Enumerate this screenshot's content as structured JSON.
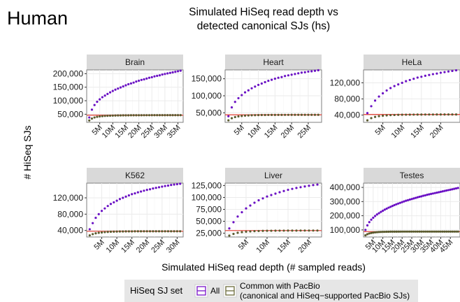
{
  "figure": {
    "corner_label": "Human",
    "title_line1": "Simulated HiSeq read depth vs",
    "title_line2": "detected canonical SJs (hs)",
    "xlabel": "Simulated HiSeq read depth (# sampled reads)",
    "ylabel": "# HiSeq SJs"
  },
  "legend": {
    "title": "HiSeq SJ set",
    "items": [
      {
        "label": "All",
        "color": "#7a14c8"
      },
      {
        "label_line1": "Common with PacBio",
        "label_line2": "(canonical and HiSeq−supported PacBio SJs)",
        "color": "#6b6b3a"
      }
    ]
  },
  "colors": {
    "all_series": "#6a10c4",
    "common_series": "#5a5a2e",
    "pacbio_line": "#e03a2e"
  },
  "chart_data": [
    {
      "type": "scatter",
      "panel": "Brain",
      "xlim": [
        0,
        37
      ],
      "ylim": [
        20000,
        214000
      ],
      "xticks": [
        5,
        10,
        15,
        20,
        25,
        30,
        35
      ],
      "xtick_labels": [
        "5M",
        "10M",
        "15M",
        "20M",
        "25M",
        "30M",
        "35M"
      ],
      "yticks": [
        50000,
        100000,
        150000,
        200000
      ],
      "ytick_labels": [
        "50,000",
        "100,000",
        "150,000",
        "200,000"
      ],
      "pacbio_reference": 46500,
      "series": [
        {
          "name": "All",
          "x": [
            1,
            2,
            3,
            4,
            5,
            6,
            7,
            8,
            9,
            10,
            11,
            12,
            13,
            14,
            15,
            16,
            17,
            18,
            19,
            20,
            21,
            22,
            23,
            24,
            25,
            26,
            27,
            28,
            29,
            30,
            31,
            32,
            33,
            34,
            35,
            36
          ],
          "y": [
            38000,
            67000,
            84000,
            96000,
            105000,
            113000,
            119000,
            125000,
            131000,
            136000,
            141000,
            145000,
            149000,
            153000,
            157000,
            161000,
            164000,
            167000,
            171000,
            174000,
            177000,
            179000,
            182000,
            185000,
            187000,
            190000,
            192000,
            194000,
            197000,
            199000,
            201000,
            203000,
            205000,
            207000,
            209000,
            211000
          ]
        },
        {
          "name": "Common with PacBio",
          "x": [
            1,
            2,
            3,
            4,
            5,
            6,
            7,
            8,
            9,
            10,
            11,
            12,
            13,
            14,
            15,
            16,
            17,
            18,
            19,
            20,
            21,
            22,
            23,
            24,
            25,
            26,
            27,
            28,
            29,
            30,
            31,
            32,
            33,
            34,
            35,
            36
          ],
          "y": [
            27000,
            34000,
            38000,
            40500,
            42000,
            43000,
            43800,
            44300,
            44700,
            45000,
            45300,
            45500,
            45700,
            45800,
            45900,
            46000,
            46100,
            46200,
            46200,
            46300,
            46300,
            46400,
            46400,
            46400,
            46500,
            46500,
            46500,
            46500,
            46500,
            46500,
            46500,
            46500,
            46500,
            46500,
            46500,
            46500
          ]
        }
      ]
    },
    {
      "type": "scatter",
      "panel": "Heart",
      "xlim": [
        0,
        29
      ],
      "ylim": [
        22000,
        176000
      ],
      "xticks": [
        5,
        10,
        15,
        20,
        25
      ],
      "xtick_labels": [
        "5M",
        "10M",
        "15M",
        "20M",
        "25M"
      ],
      "yticks": [
        50000,
        100000,
        150000
      ],
      "ytick_labels": [
        "50,000",
        "100,000",
        "150,000"
      ],
      "pacbio_reference": 44000,
      "series": [
        {
          "name": "All",
          "x": [
            1,
            2,
            3,
            4,
            5,
            6,
            7,
            8,
            9,
            10,
            11,
            12,
            13,
            14,
            15,
            16,
            17,
            18,
            19,
            20,
            21,
            22,
            23,
            24,
            25,
            26,
            27,
            28
          ],
          "y": [
            40000,
            66000,
            82000,
            93000,
            102000,
            110000,
            116000,
            122000,
            127000,
            132000,
            136000,
            140000,
            144000,
            147000,
            150000,
            153000,
            155000,
            158000,
            160000,
            162000,
            164000,
            166000,
            168000,
            169000,
            171000,
            172000,
            173500,
            175000
          ]
        },
        {
          "name": "Common with PacBio",
          "x": [
            1,
            2,
            3,
            4,
            5,
            6,
            7,
            8,
            9,
            10,
            11,
            12,
            13,
            14,
            15,
            16,
            17,
            18,
            19,
            20,
            21,
            22,
            23,
            24,
            25,
            26,
            27,
            28
          ],
          "y": [
            28000,
            34000,
            37500,
            39500,
            40800,
            41700,
            42300,
            42800,
            43100,
            43300,
            43500,
            43600,
            43700,
            43800,
            43850,
            43900,
            43900,
            43950,
            43950,
            44000,
            44000,
            44000,
            44000,
            44000,
            44000,
            44000,
            44000,
            44000
          ]
        }
      ]
    },
    {
      "type": "scatter",
      "panel": "HeLa",
      "xlim": [
        0,
        25
      ],
      "ylim": [
        22000,
        152000
      ],
      "xticks": [
        5,
        10,
        15,
        20
      ],
      "xtick_labels": [
        "5M",
        "10M",
        "15M",
        "20M"
      ],
      "yticks": [
        40000,
        80000,
        120000
      ],
      "ytick_labels": [
        "40,000",
        "80,000",
        "120,000"
      ],
      "pacbio_reference": 41500,
      "series": [
        {
          "name": "All",
          "x": [
            1,
            2,
            3,
            4,
            5,
            6,
            7,
            8,
            9,
            10,
            11,
            12,
            13,
            14,
            15,
            16,
            17,
            18,
            19,
            20,
            21,
            22,
            23,
            24
          ],
          "y": [
            45000,
            62000,
            76000,
            86000,
            94000,
            101000,
            107000,
            112000,
            116000,
            120000,
            124000,
            127000,
            130000,
            133000,
            135000,
            137500,
            139500,
            141500,
            143000,
            145000,
            146500,
            148000,
            149500,
            151000
          ]
        },
        {
          "name": "Common with PacBio",
          "x": [
            1,
            2,
            3,
            4,
            5,
            6,
            7,
            8,
            9,
            10,
            11,
            12,
            13,
            14,
            15,
            16,
            17,
            18,
            19,
            20,
            21,
            22,
            23,
            24
          ],
          "y": [
            27000,
            32500,
            35500,
            37300,
            38500,
            39300,
            39900,
            40300,
            40600,
            40800,
            41000,
            41100,
            41200,
            41300,
            41300,
            41400,
            41400,
            41400,
            41500,
            41500,
            41500,
            41500,
            41500,
            41500
          ]
        }
      ]
    },
    {
      "type": "scatter",
      "panel": "K562",
      "xlim": [
        0,
        32
      ],
      "ylim": [
        24000,
        156000
      ],
      "xticks": [
        5,
        10,
        15,
        20,
        25,
        30
      ],
      "xtick_labels": [
        "5M",
        "10M",
        "15M",
        "20M",
        "25M",
        "30M"
      ],
      "yticks": [
        40000,
        80000,
        120000
      ],
      "ytick_labels": [
        "40,000",
        "80,000",
        "120,000"
      ],
      "pacbio_reference": 38000,
      "series": [
        {
          "name": "All",
          "x": [
            1,
            2,
            3,
            4,
            5,
            6,
            7,
            8,
            9,
            10,
            11,
            12,
            13,
            14,
            15,
            16,
            17,
            18,
            19,
            20,
            21,
            22,
            23,
            24,
            25,
            26,
            27,
            28,
            29,
            30,
            31
          ],
          "y": [
            43000,
            58000,
            71000,
            80000,
            88000,
            94000,
            100000,
            105000,
            109000,
            113000,
            117000,
            120000,
            123000,
            126000,
            129000,
            131000,
            133500,
            135500,
            137500,
            139500,
            141000,
            143000,
            144500,
            146000,
            147500,
            149000,
            150000,
            151500,
            152500,
            153500,
            154500
          ]
        },
        {
          "name": "Common with PacBio",
          "x": [
            1,
            2,
            3,
            4,
            5,
            6,
            7,
            8,
            9,
            10,
            11,
            12,
            13,
            14,
            15,
            16,
            17,
            18,
            19,
            20,
            21,
            22,
            23,
            24,
            25,
            26,
            27,
            28,
            29,
            30,
            31
          ],
          "y": [
            28000,
            31000,
            33000,
            34300,
            35200,
            35900,
            36400,
            36800,
            37100,
            37300,
            37500,
            37600,
            37700,
            37800,
            37800,
            37900,
            37900,
            37900,
            38000,
            38000,
            38000,
            38000,
            38000,
            38000,
            38000,
            38000,
            38000,
            38000,
            38000,
            38000,
            38000
          ]
        }
      ]
    },
    {
      "type": "scatter",
      "panel": "Liver",
      "xlim": [
        0,
        23
      ],
      "ylim": [
        17000,
        130000
      ],
      "xticks": [
        5,
        10,
        15,
        20
      ],
      "xtick_labels": [
        "5M",
        "10M",
        "15M",
        "20M"
      ],
      "yticks": [
        25000,
        50000,
        75000,
        100000,
        125000
      ],
      "ytick_labels": [
        "25,000",
        "50,000",
        "75,000",
        "100,000",
        "125,000"
      ],
      "pacbio_reference": 30500,
      "series": [
        {
          "name": "All",
          "x": [
            1,
            2,
            3,
            4,
            5,
            6,
            7,
            8,
            9,
            10,
            11,
            12,
            13,
            14,
            15,
            16,
            17,
            18,
            19,
            20,
            21,
            22
          ],
          "y": [
            35000,
            48000,
            60000,
            69000,
            77000,
            83000,
            89000,
            94000,
            98000,
            102000,
            105000,
            108000,
            111000,
            113500,
            116000,
            118000,
            120000,
            121500,
            123000,
            124500,
            126000,
            127000
          ]
        },
        {
          "name": "Common with PacBio",
          "x": [
            1,
            2,
            3,
            4,
            5,
            6,
            7,
            8,
            9,
            10,
            11,
            12,
            13,
            14,
            15,
            16,
            17,
            18,
            19,
            20,
            21,
            22
          ],
          "y": [
            20000,
            23500,
            25800,
            27200,
            28200,
            28800,
            29300,
            29600,
            29800,
            30000,
            30100,
            30200,
            30300,
            30300,
            30400,
            30400,
            30400,
            30500,
            30500,
            30500,
            30500,
            30500
          ]
        }
      ]
    },
    {
      "type": "scatter",
      "panel": "Testes",
      "xlim": [
        0,
        50
      ],
      "ylim": [
        50000,
        430000
      ],
      "xticks": [
        5,
        10,
        15,
        20,
        25,
        30,
        35,
        40,
        45
      ],
      "xtick_labels": [
        "5M",
        "10M",
        "15M",
        "20M",
        "25M",
        "30M",
        "35M",
        "40M",
        "45M"
      ],
      "yticks": [
        100000,
        200000,
        300000,
        400000
      ],
      "ytick_labels": [
        "100,000",
        "200,000",
        "300,000",
        "400,000"
      ],
      "pacbio_reference": 88000,
      "series": [
        {
          "name": "All",
          "x": [
            1,
            2,
            3,
            4,
            5,
            6,
            7,
            8,
            9,
            10,
            11,
            12,
            13,
            14,
            15,
            16,
            17,
            18,
            19,
            20,
            21,
            22,
            23,
            24,
            25,
            26,
            27,
            28,
            29,
            30,
            31,
            32,
            33,
            34,
            35,
            36,
            37,
            38,
            39,
            40,
            41,
            42,
            43,
            44,
            45,
            46,
            47,
            48,
            49
          ],
          "y": [
            100000,
            132000,
            155000,
            172000,
            186000,
            198000,
            209000,
            218000,
            227000,
            235000,
            243000,
            250000,
            257000,
            263000,
            269000,
            275000,
            281000,
            286000,
            291000,
            296000,
            301000,
            306000,
            310000,
            314000,
            318000,
            322000,
            326000,
            330000,
            334000,
            337000,
            341000,
            344000,
            348000,
            351000,
            354000,
            357000,
            360000,
            363000,
            366000,
            369000,
            372000,
            375000,
            378000,
            381000,
            384000,
            387000,
            390000,
            393000,
            396000
          ]
        },
        {
          "name": "Common with PacBio",
          "x": [
            1,
            2,
            3,
            4,
            5,
            6,
            7,
            8,
            9,
            10,
            11,
            12,
            13,
            14,
            15,
            16,
            17,
            18,
            19,
            20,
            21,
            22,
            23,
            24,
            25,
            26,
            27,
            28,
            29,
            30,
            31,
            32,
            33,
            34,
            35,
            36,
            37,
            38,
            39,
            40,
            41,
            42,
            43,
            44,
            45,
            46,
            47,
            48,
            49
          ],
          "y": [
            62000,
            70000,
            75000,
            78500,
            81000,
            82700,
            84000,
            85000,
            85800,
            86300,
            86700,
            87000,
            87300,
            87500,
            87600,
            87700,
            87800,
            87900,
            87900,
            88000,
            88000,
            88000,
            88000,
            88000,
            88000,
            88000,
            88000,
            88000,
            88000,
            88000,
            88000,
            88000,
            88000,
            88000,
            88000,
            88000,
            88000,
            88000,
            88000,
            88000,
            88000,
            88000,
            88000,
            88000,
            88000,
            88000,
            88000,
            88000,
            88000
          ]
        }
      ]
    }
  ]
}
